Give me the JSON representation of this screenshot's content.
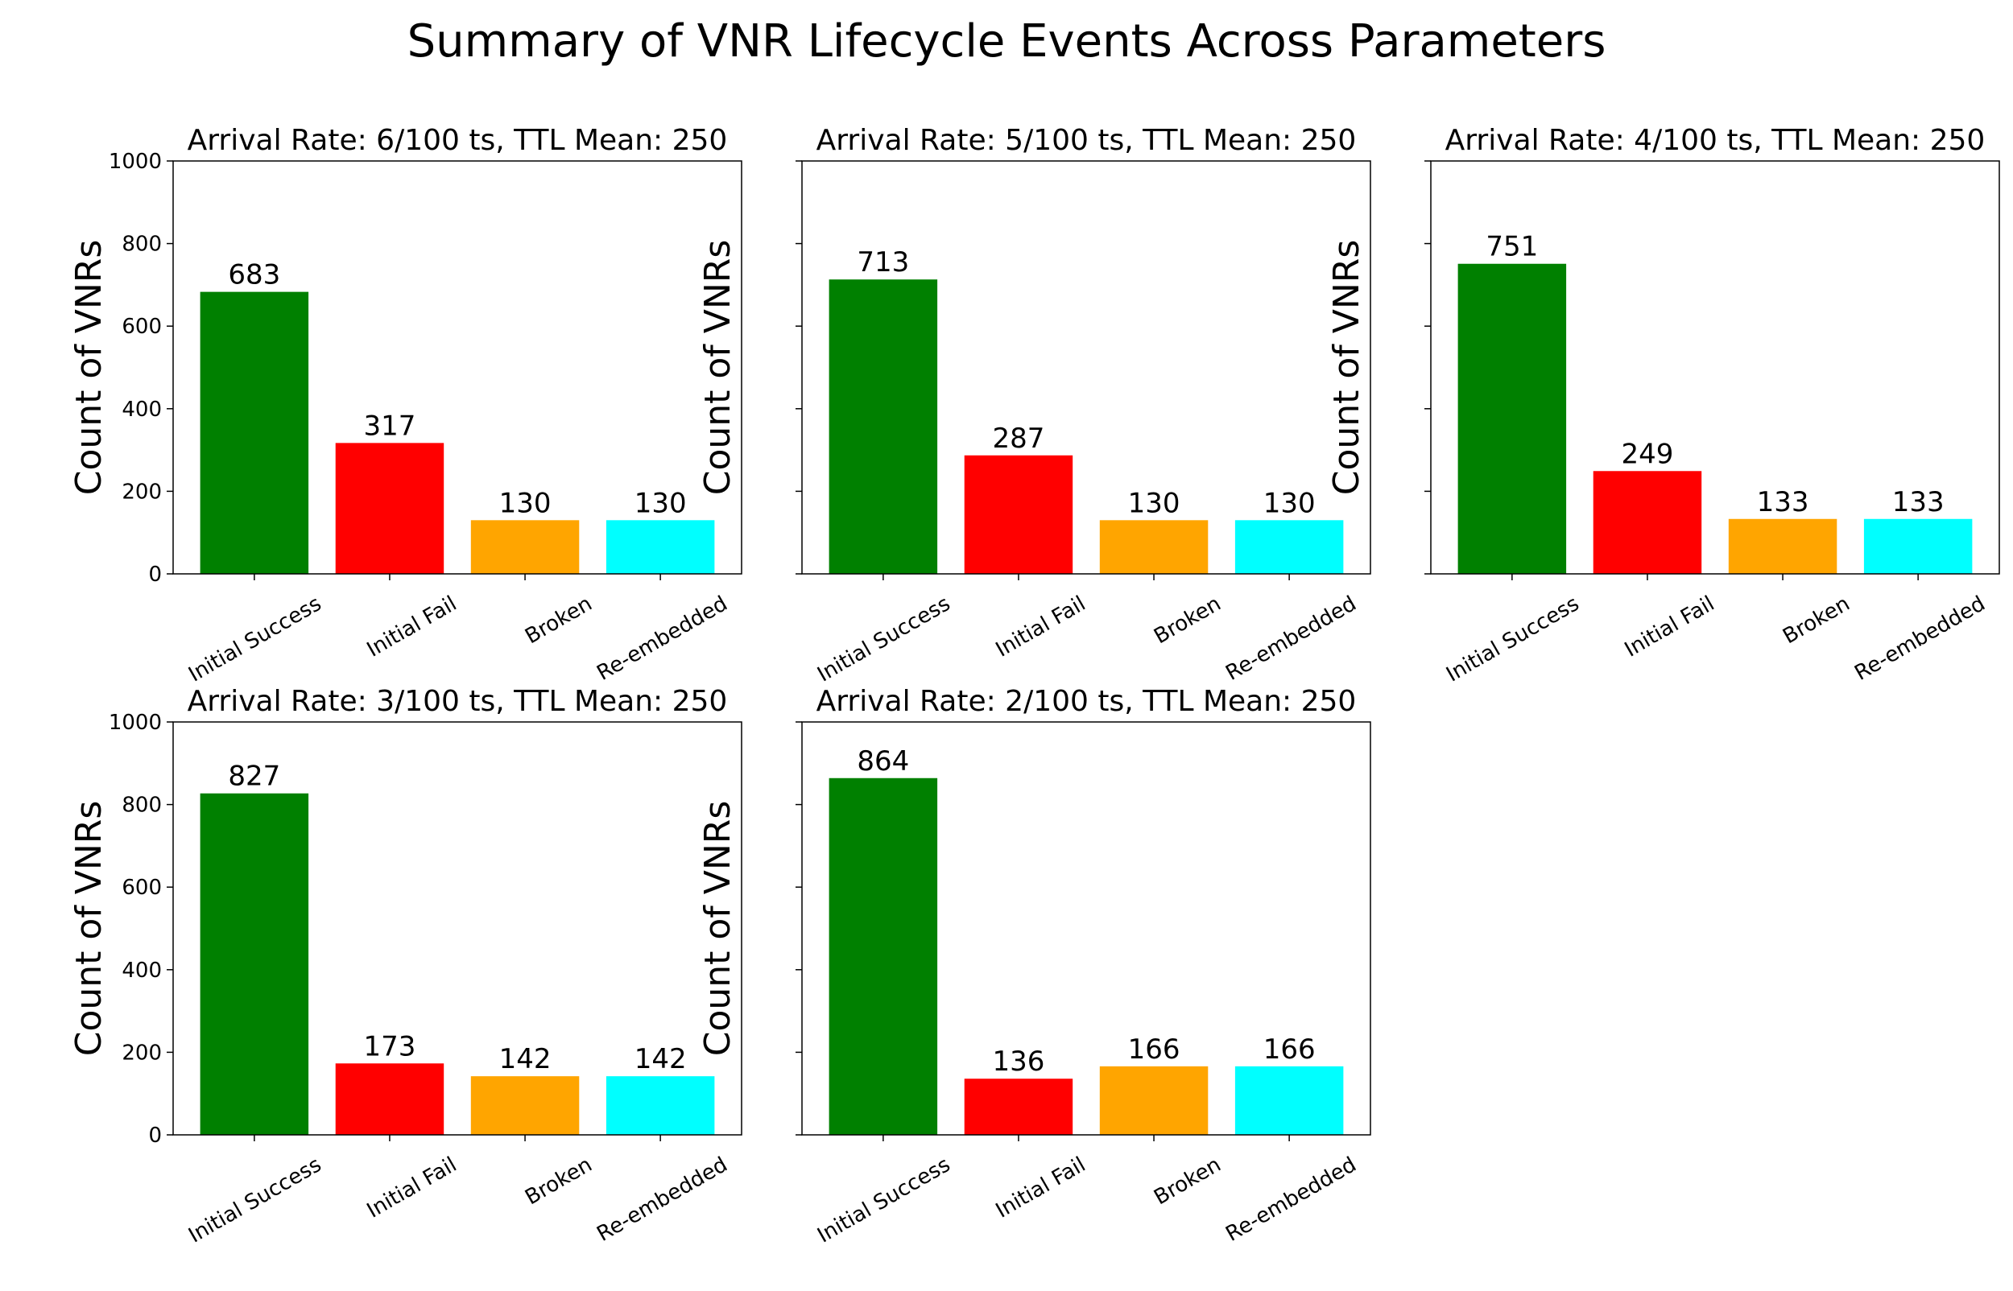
{
  "figure": {
    "title": "Summary of VNR Lifecycle Events Across Parameters"
  },
  "colors": {
    "initial_success": "#008000",
    "initial_fail": "#ff0000",
    "broken": "#ffa500",
    "re_embedded": "#00ffff",
    "axis": "#000000",
    "text": "#000000",
    "background": "#ffffff"
  },
  "chart_data": [
    {
      "type": "bar",
      "title": "Arrival Rate: 6/100 ts, TTL Mean: 250",
      "xlabel": "",
      "ylabel": "Count of VNRs",
      "categories": [
        "Initial Success",
        "Initial Fail",
        "Broken",
        "Re-embedded"
      ],
      "values": [
        683,
        317,
        130,
        130
      ],
      "data_labels": [
        "683",
        "317",
        "130",
        "130"
      ],
      "ylim": [
        0,
        1000
      ],
      "yticks": [
        "0",
        "200",
        "400",
        "600",
        "800",
        "1000"
      ],
      "show_ytick_labels": true,
      "grid": false
    },
    {
      "type": "bar",
      "title": "Arrival Rate: 5/100 ts, TTL Mean: 250",
      "xlabel": "",
      "ylabel": "Count of VNRs",
      "categories": [
        "Initial Success",
        "Initial Fail",
        "Broken",
        "Re-embedded"
      ],
      "values": [
        713,
        287,
        130,
        130
      ],
      "data_labels": [
        "713",
        "287",
        "130",
        "130"
      ],
      "ylim": [
        0,
        1000
      ],
      "yticks": [
        "0",
        "200",
        "400",
        "600",
        "800",
        "1000"
      ],
      "show_ytick_labels": false,
      "grid": false
    },
    {
      "type": "bar",
      "title": "Arrival Rate: 4/100 ts, TTL Mean: 250",
      "xlabel": "",
      "ylabel": "Count of VNRs",
      "categories": [
        "Initial Success",
        "Initial Fail",
        "Broken",
        "Re-embedded"
      ],
      "values": [
        751,
        249,
        133,
        133
      ],
      "data_labels": [
        "751",
        "249",
        "133",
        "133"
      ],
      "ylim": [
        0,
        1000
      ],
      "yticks": [
        "0",
        "200",
        "400",
        "600",
        "800",
        "1000"
      ],
      "show_ytick_labels": false,
      "grid": false
    },
    {
      "type": "bar",
      "title": "Arrival Rate: 3/100 ts, TTL Mean: 250",
      "xlabel": "",
      "ylabel": "Count of VNRs",
      "categories": [
        "Initial Success",
        "Initial Fail",
        "Broken",
        "Re-embedded"
      ],
      "values": [
        827,
        173,
        142,
        142
      ],
      "data_labels": [
        "827",
        "173",
        "142",
        "142"
      ],
      "ylim": [
        0,
        1000
      ],
      "yticks": [
        "0",
        "200",
        "400",
        "600",
        "800",
        "1000"
      ],
      "show_ytick_labels": true,
      "grid": false
    },
    {
      "type": "bar",
      "title": "Arrival Rate: 2/100 ts, TTL Mean: 250",
      "xlabel": "",
      "ylabel": "Count of VNRs",
      "categories": [
        "Initial Success",
        "Initial Fail",
        "Broken",
        "Re-embedded"
      ],
      "values": [
        864,
        136,
        166,
        166
      ],
      "data_labels": [
        "864",
        "136",
        "166",
        "166"
      ],
      "ylim": [
        0,
        1000
      ],
      "yticks": [
        "0",
        "200",
        "400",
        "600",
        "800",
        "1000"
      ],
      "show_ytick_labels": false,
      "grid": false
    }
  ]
}
